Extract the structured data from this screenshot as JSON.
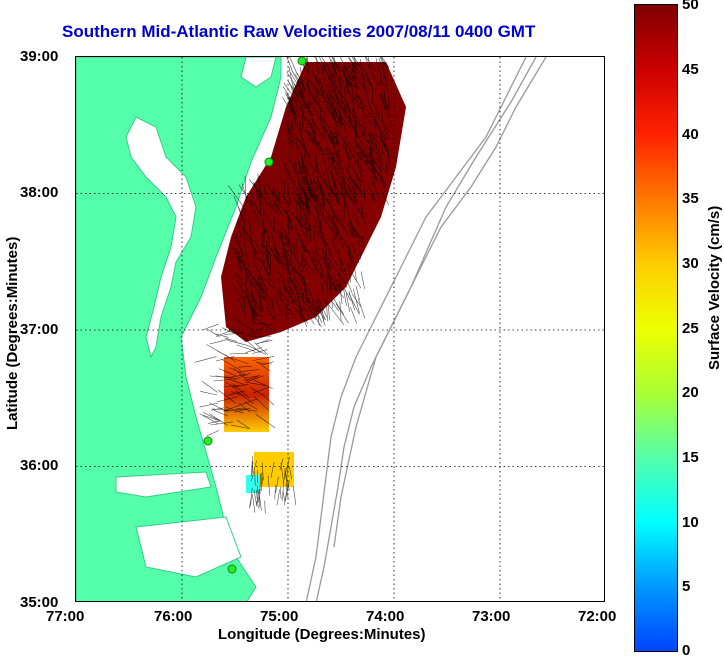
{
  "title": "Southern Mid-Atlantic Raw Velocities 2007/08/11 0400 GMT",
  "xlabel": "Longitude (Degrees:Minutes)",
  "ylabel": "Latitude (Degrees:Minutes)",
  "x_ticks": [
    "77:00",
    "76:00",
    "75:00",
    "74:00",
    "73:00",
    "72:00"
  ],
  "y_ticks": [
    "39:00",
    "38:00",
    "37:00",
    "36:00",
    "35:00"
  ],
  "colorbar": {
    "label": "Surface Velocity (cm/s)",
    "ticks": [
      "50",
      "45",
      "40",
      "35",
      "30",
      "25",
      "20",
      "15",
      "10",
      "5",
      "0"
    ],
    "min": 0,
    "max": 50
  },
  "colors": {
    "land": "#55ffaa",
    "coast": "#33cc88",
    "bathymetry": "#999999",
    "title": "#0000cc",
    "vectors": "#000000",
    "station": "#22ee22"
  },
  "map_extent": {
    "lon": [
      -77,
      -72
    ],
    "lat": [
      35,
      39
    ]
  }
}
